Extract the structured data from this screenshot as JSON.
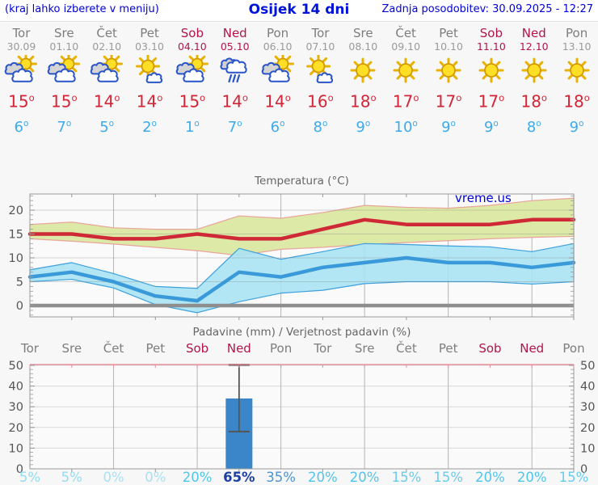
{
  "header": {
    "hint": "(kraj lahko izberete v meniju)",
    "title": "Osijek 14 dni",
    "updated": "Zadnja posodobitev: 30.09.2025 - 12:27"
  },
  "units": {
    "degree": "o"
  },
  "watermark": "vreme.us",
  "colors": {
    "weekday": "#7d7d7d",
    "weekend": "#b01648",
    "high_temp": "#d42537",
    "low_temp": "#3caaec",
    "header_blue": "#0000d8",
    "bar_blue": "#3b86c8",
    "max_line": "#cf2937",
    "max_band_fill": "#dde9a6",
    "max_band_edge": "#e9a49b",
    "min_line": "#3a9ad9",
    "min_band_fill": "#a7e3f2",
    "min_band_edge": "#3da0dc"
  },
  "days": [
    {
      "name": "Tor",
      "date": "30.09",
      "weekend": false,
      "icon": "partly-cloudy",
      "high": 15,
      "low": 6,
      "prob": "5%",
      "prob_color": "#93dbf1",
      "prob_bold": false
    },
    {
      "name": "Sre",
      "date": "01.10",
      "weekend": false,
      "icon": "partly-cloudy",
      "high": 15,
      "low": 7,
      "prob": "5%",
      "prob_color": "#93dbf1",
      "prob_bold": false
    },
    {
      "name": "Čet",
      "date": "02.10",
      "weekend": false,
      "icon": "partly-cloudy",
      "high": 14,
      "low": 5,
      "prob": "0%",
      "prob_color": "#a5e2f4",
      "prob_bold": false
    },
    {
      "name": "Pet",
      "date": "03.10",
      "weekend": false,
      "icon": "mostly-sunny",
      "high": 14,
      "low": 2,
      "prob": "0%",
      "prob_color": "#a5e2f4",
      "prob_bold": false
    },
    {
      "name": "Sob",
      "date": "04.10",
      "weekend": true,
      "icon": "partly-cloudy",
      "high": 15,
      "low": 1,
      "prob": "20%",
      "prob_color": "#4ec5ea",
      "prob_bold": false
    },
    {
      "name": "Ned",
      "date": "05.10",
      "weekend": true,
      "icon": "rain",
      "high": 14,
      "low": 7,
      "prob": "65%",
      "prob_color": "#1d3fa6",
      "prob_bold": true
    },
    {
      "name": "Pon",
      "date": "06.10",
      "weekend": false,
      "icon": "partly-cloudy",
      "high": 14,
      "low": 6,
      "prob": "35%",
      "prob_color": "#4b93d8",
      "prob_bold": false
    },
    {
      "name": "Tor",
      "date": "07.10",
      "weekend": false,
      "icon": "mostly-sunny",
      "high": 16,
      "low": 8,
      "prob": "20%",
      "prob_color": "#4ec5ea",
      "prob_bold": false
    },
    {
      "name": "Sre",
      "date": "08.10",
      "weekend": false,
      "icon": "sunny",
      "high": 18,
      "low": 9,
      "prob": "20%",
      "prob_color": "#4ec5ea",
      "prob_bold": false
    },
    {
      "name": "Čet",
      "date": "09.10",
      "weekend": false,
      "icon": "sunny",
      "high": 17,
      "low": 10,
      "prob": "15%",
      "prob_color": "#66cdec",
      "prob_bold": false
    },
    {
      "name": "Pet",
      "date": "10.10",
      "weekend": false,
      "icon": "sunny",
      "high": 17,
      "low": 9,
      "prob": "15%",
      "prob_color": "#66cdec",
      "prob_bold": false
    },
    {
      "name": "Sob",
      "date": "11.10",
      "weekend": true,
      "icon": "sunny",
      "high": 17,
      "low": 9,
      "prob": "20%",
      "prob_color": "#4ec5ea",
      "prob_bold": false
    },
    {
      "name": "Ned",
      "date": "12.10",
      "weekend": true,
      "icon": "sunny",
      "high": 18,
      "low": 8,
      "prob": "20%",
      "prob_color": "#4ec5ea",
      "prob_bold": false
    },
    {
      "name": "Pon",
      "date": "13.10",
      "weekend": false,
      "icon": "sunny",
      "high": 18,
      "low": 9,
      "prob": "15%",
      "prob_color": "#66cdec",
      "prob_bold": false
    }
  ],
  "chart_data": [
    {
      "type": "area",
      "title": "Temperatura (°C)",
      "x_labels": [
        "Tor",
        "Sre",
        "Čet",
        "Pet",
        "Sob",
        "Ned",
        "Pon",
        "Tor",
        "Sre",
        "Čet",
        "Pet",
        "Sob",
        "Ned",
        "Pon"
      ],
      "ylim": [
        -2.4,
        23.4
      ],
      "yticks": [
        0,
        5,
        10,
        15,
        20
      ],
      "grid": "on",
      "zero_line": true,
      "series": [
        {
          "name": "max-range",
          "type": "band",
          "upper": [
            17,
            17.5,
            16.3,
            16,
            16,
            18.8,
            18.3,
            19.5,
            21,
            20.6,
            20.4,
            21,
            22,
            22.5
          ],
          "lower": [
            14,
            13.5,
            12.9,
            12.2,
            11.5,
            10.5,
            11.8,
            12.2,
            12.8,
            13.2,
            13.6,
            14,
            14.3,
            14.5
          ]
        },
        {
          "name": "min-range",
          "type": "band",
          "upper": [
            7.5,
            9,
            6.7,
            4,
            3.6,
            12,
            9.7,
            11.3,
            13,
            12.8,
            12.5,
            12.3,
            11.3,
            13
          ],
          "lower": [
            5,
            5.5,
            3.7,
            0.2,
            -1.5,
            0.8,
            2.6,
            3.2,
            4.6,
            5,
            5,
            5,
            4.5,
            5
          ]
        },
        {
          "name": "max-temp",
          "type": "line",
          "values": [
            15,
            15,
            14,
            14,
            15,
            14,
            14,
            16,
            18,
            17,
            17,
            17,
            18,
            18
          ]
        },
        {
          "name": "min-temp",
          "type": "line",
          "values": [
            6,
            7,
            5,
            2,
            1,
            7,
            6,
            8,
            9,
            10,
            9,
            9,
            8,
            9
          ]
        }
      ]
    },
    {
      "type": "bar",
      "title": "Padavine (mm) / Verjetnost padavin (%)",
      "categories": [
        "Tor",
        "Sre",
        "Čet",
        "Pet",
        "Sob",
        "Ned",
        "Pon",
        "Tor",
        "Sre",
        "Čet",
        "Pet",
        "Sob",
        "Ned",
        "Pon"
      ],
      "values": [
        0,
        0,
        0,
        0,
        0,
        34,
        0,
        0,
        0,
        0,
        0,
        0,
        0,
        0
      ],
      "error_bars": [
        {
          "index": 5,
          "low": 18,
          "high": 50.3
        }
      ],
      "probabilities": [
        "5%",
        "5%",
        "0%",
        "0%",
        "20%",
        "65%",
        "35%",
        "20%",
        "20%",
        "15%",
        "15%",
        "20%",
        "20%",
        "15%"
      ],
      "ylim": [
        0,
        52
      ],
      "yticks": [
        0,
        10,
        20,
        30,
        40,
        50
      ],
      "grid": "on"
    }
  ]
}
